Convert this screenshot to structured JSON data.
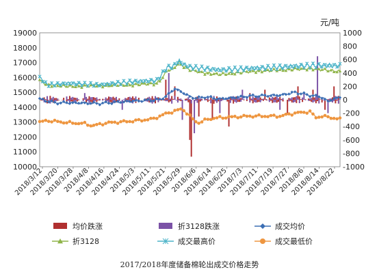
{
  "chart_data": {
    "type": "line",
    "title": "2017/2018年度储备棉轮出成交价格走势",
    "unit_label": "元/吨",
    "y_left": {
      "min": 10000,
      "max": 19000,
      "step": 1000
    },
    "y_right": {
      "min": -1000,
      "max": 1000,
      "step": 200
    },
    "x_tick_labels": [
      "2018/3/12",
      "2018/3/20",
      "2018/3/28",
      "2018/4/8",
      "2018/4/16",
      "2018/4/24",
      "2018/5/3",
      "2018/5/11",
      "2018/5/21",
      "2018/5/29",
      "2018/6/6",
      "2018/6/14",
      "2018/6/25",
      "2018/7/3",
      "2018/7/11",
      "2018/7/19",
      "2018/7/27",
      "2018/8/6",
      "2018/8/14",
      "2018/8/22"
    ],
    "grid": false,
    "legend_position": "bottom",
    "colors": {
      "junjia_diezhang": "#b03030",
      "zhe_diezhang": "#7b52a6",
      "chengjiao_junjia": "#3c6fb4",
      "zhe3128": "#8fb449",
      "zuigao": "#4bb3c8",
      "zuidi": "#ee9640"
    },
    "legend": [
      {
        "key": "junjia_diezhang",
        "label": "均价跌涨",
        "marker": "bar"
      },
      {
        "key": "zhe_diezhang",
        "label": "折3128跌涨",
        "marker": "bar"
      },
      {
        "key": "chengjiao_junjia",
        "label": "成交均价",
        "marker": "diamond"
      },
      {
        "key": "zhe3128",
        "label": "折3128",
        "marker": "triangle"
      },
      {
        "key": "zuigao",
        "label": "成交最高价",
        "marker": "star"
      },
      {
        "key": "zuidi",
        "label": "成交最低价",
        "marker": "circle"
      }
    ],
    "series": [
      {
        "name": "成交均价",
        "axis": "left",
        "key": "chengjiao_junjia",
        "anchors": [
          [
            0,
            14550
          ],
          [
            10,
            14300
          ],
          [
            20,
            14300
          ],
          [
            40,
            14250
          ],
          [
            60,
            14400
          ],
          [
            70,
            14450
          ],
          [
            80,
            14500
          ],
          [
            85,
            14800
          ],
          [
            90,
            15250
          ],
          [
            95,
            15000
          ],
          [
            100,
            14700
          ],
          [
            105,
            14600
          ],
          [
            110,
            14700
          ],
          [
            120,
            14550
          ],
          [
            140,
            14750
          ],
          [
            160,
            14800
          ],
          [
            170,
            15000
          ],
          [
            180,
            14800
          ],
          [
            187,
            14700
          ],
          [
            192,
            14400
          ],
          [
            200,
            14700
          ]
        ]
      },
      {
        "name": "折3128",
        "axis": "left",
        "key": "zhe3128",
        "anchors": [
          [
            0,
            15800
          ],
          [
            5,
            15500
          ],
          [
            20,
            15400
          ],
          [
            40,
            15450
          ],
          [
            60,
            15500
          ],
          [
            78,
            15600
          ],
          [
            82,
            16000
          ],
          [
            85,
            16500
          ],
          [
            88,
            16500
          ],
          [
            93,
            17000
          ],
          [
            95,
            16800
          ],
          [
            100,
            16500
          ],
          [
            110,
            16300
          ],
          [
            120,
            16200
          ],
          [
            140,
            16400
          ],
          [
            160,
            16500
          ],
          [
            180,
            16600
          ],
          [
            200,
            16400
          ]
        ]
      },
      {
        "name": "成交最高价",
        "axis": "left",
        "key": "zuigao",
        "anchors": [
          [
            0,
            16000
          ],
          [
            5,
            15500
          ],
          [
            20,
            15600
          ],
          [
            40,
            15500
          ],
          [
            60,
            15700
          ],
          [
            78,
            15800
          ],
          [
            82,
            16300
          ],
          [
            85,
            16700
          ],
          [
            88,
            16700
          ],
          [
            93,
            17100
          ],
          [
            95,
            16900
          ],
          [
            100,
            16700
          ],
          [
            110,
            16600
          ],
          [
            120,
            16500
          ],
          [
            140,
            16600
          ],
          [
            160,
            16700
          ],
          [
            180,
            16800
          ],
          [
            200,
            16800
          ]
        ]
      },
      {
        "name": "成交最低价",
        "axis": "left",
        "key": "zuidi",
        "anchors": [
          [
            0,
            13000
          ],
          [
            5,
            13100
          ],
          [
            20,
            12950
          ],
          [
            30,
            12900
          ],
          [
            35,
            12750
          ],
          [
            45,
            12950
          ],
          [
            60,
            13050
          ],
          [
            75,
            13200
          ],
          [
            80,
            13400
          ],
          [
            85,
            13600
          ],
          [
            92,
            13800
          ],
          [
            95,
            13900
          ],
          [
            100,
            13400
          ],
          [
            103,
            13100
          ],
          [
            106,
            12950
          ],
          [
            112,
            13200
          ],
          [
            120,
            13300
          ],
          [
            140,
            13400
          ],
          [
            160,
            13400
          ],
          [
            170,
            13600
          ],
          [
            180,
            13700
          ],
          [
            184,
            13300
          ],
          [
            188,
            13400
          ],
          [
            200,
            13200
          ]
        ]
      },
      {
        "name": "均价跌涨",
        "axis": "right",
        "key": "junjia_diezhang",
        "type": "bar",
        "values_sparse": [
          [
            84,
            300
          ],
          [
            90,
            200
          ],
          [
            100,
            -600
          ],
          [
            101,
            -850
          ],
          [
            106,
            -250
          ],
          [
            115,
            -300
          ],
          [
            126,
            -400
          ],
          [
            140,
            100
          ],
          [
            150,
            150
          ],
          [
            165,
            -200
          ],
          [
            172,
            200
          ],
          [
            182,
            150
          ],
          [
            190,
            -150
          ],
          [
            196,
            200
          ]
        ]
      },
      {
        "name": "折3128跌涨",
        "axis": "right",
        "key": "zhe_diezhang",
        "type": "bar",
        "values_sparse": [
          [
            30,
            100
          ],
          [
            55,
            -150
          ],
          [
            86,
            400
          ],
          [
            95,
            -300
          ],
          [
            103,
            -500
          ],
          [
            120,
            -200
          ],
          [
            135,
            150
          ],
          [
            160,
            -150
          ],
          [
            176,
            100
          ],
          [
            185,
            650
          ],
          [
            192,
            -200
          ]
        ]
      }
    ],
    "n_points": 201
  }
}
